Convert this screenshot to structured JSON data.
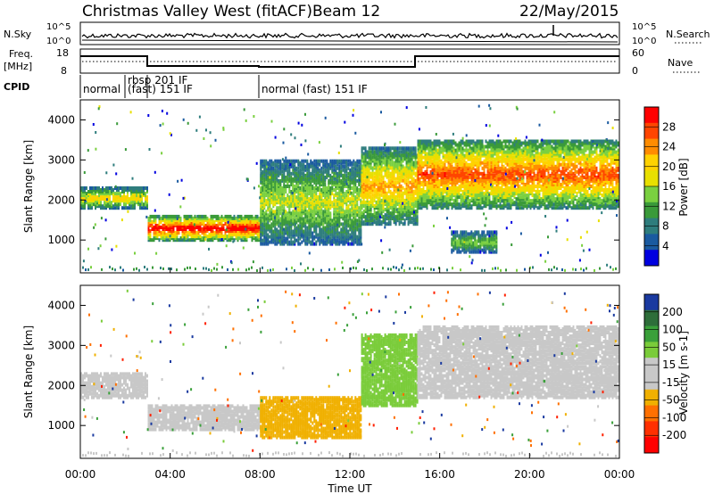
{
  "header": {
    "site": "Christmas Valley West (fitACF)",
    "beam": "Beam 12",
    "date": "22/May/2015"
  },
  "noise_panel": {
    "left_label": "N.Sky",
    "right_label": "N.Search",
    "left_ticks": [
      "10^5",
      "10^0"
    ],
    "right_ticks": [
      "10^5",
      "10^0"
    ]
  },
  "freq_panel": {
    "left_label_1": "Freq.",
    "left_label_2": "[MHz]",
    "left_ticks": [
      "18",
      "8"
    ],
    "right_label": "Nave",
    "right_ticks": [
      "60",
      "0"
    ]
  },
  "cpid": {
    "label": "CPID",
    "segments": [
      "normal",
      "rbsp 201 IF",
      "(fast) 151 IF",
      "normal (fast) 151 IF"
    ]
  },
  "chart_data": [
    {
      "type": "heatmap",
      "title": "Power",
      "ylabel": "Slant Range [km]",
      "ylim": [
        180,
        4500
      ],
      "yticks": [
        "4000",
        "3000",
        "2000",
        "1000"
      ],
      "colorbar_label": "Power [dB]",
      "colorbar_ticks": [
        "28",
        "24",
        "20",
        "16",
        "12",
        "8",
        "4"
      ],
      "colorbar_colors": [
        "#ff0000",
        "#ff4500",
        "#ff8c00",
        "#ffd200",
        "#e8e000",
        "#7ad040",
        "#3a9a3a",
        "#2e7d7d",
        "#1a5aa0",
        "#0000e0"
      ],
      "echo_regions": [
        {
          "t": [
            0.0,
            3.0
          ],
          "range": [
            1800,
            2300
          ],
          "peak_db": 20
        },
        {
          "t": [
            3.0,
            8.0
          ],
          "range": [
            1000,
            1600
          ],
          "peak_db": 30
        },
        {
          "t": [
            8.0,
            12.5
          ],
          "range": [
            900,
            3000
          ],
          "peak_db": 16
        },
        {
          "t": [
            12.5,
            15.0
          ],
          "range": [
            1400,
            3300
          ],
          "peak_db": 22
        },
        {
          "t": [
            15.0,
            24.0
          ],
          "range": [
            1800,
            3500
          ],
          "peak_db": 26
        },
        {
          "t": [
            16.5,
            18.5
          ],
          "range": [
            700,
            1200
          ],
          "peak_db": 14
        }
      ]
    },
    {
      "type": "heatmap",
      "title": "Velocity",
      "ylabel": "Slant Range [km]",
      "ylim": [
        180,
        4500
      ],
      "yticks": [
        "4000",
        "3000",
        "2000",
        "1000"
      ],
      "xlabel": "Time UT",
      "xticks": [
        "00:00",
        "04:00",
        "08:00",
        "12:00",
        "16:00",
        "20:00",
        "00:00"
      ],
      "xlim": [
        0,
        24
      ],
      "colorbar_label": "Velocity [m s-1]",
      "colorbar_ticks": [
        "200",
        "100",
        "50",
        "15",
        "-15",
        "-50",
        "-100",
        "-200"
      ],
      "colorbar_colors": [
        "#1a3aa0",
        "#2e6e3a",
        "#3aa03a",
        "#7acc3a",
        "#c8c8c8",
        "#c8c8c8",
        "#f0b000",
        "#ff7000",
        "#ff3000",
        "#ff0000"
      ],
      "echo_regions": [
        {
          "t": [
            0.0,
            3.0
          ],
          "range": [
            1700,
            2300
          ],
          "velocity": 0
        },
        {
          "t": [
            3.0,
            8.0
          ],
          "range": [
            900,
            1500
          ],
          "velocity": 0
        },
        {
          "t": [
            8.0,
            12.5
          ],
          "range": [
            700,
            1700
          ],
          "velocity": -50
        },
        {
          "t": [
            12.5,
            15.0
          ],
          "range": [
            1500,
            3300
          ],
          "velocity": 40
        },
        {
          "t": [
            15.0,
            24.0
          ],
          "range": [
            1700,
            3500
          ],
          "velocity": 0
        }
      ]
    }
  ]
}
